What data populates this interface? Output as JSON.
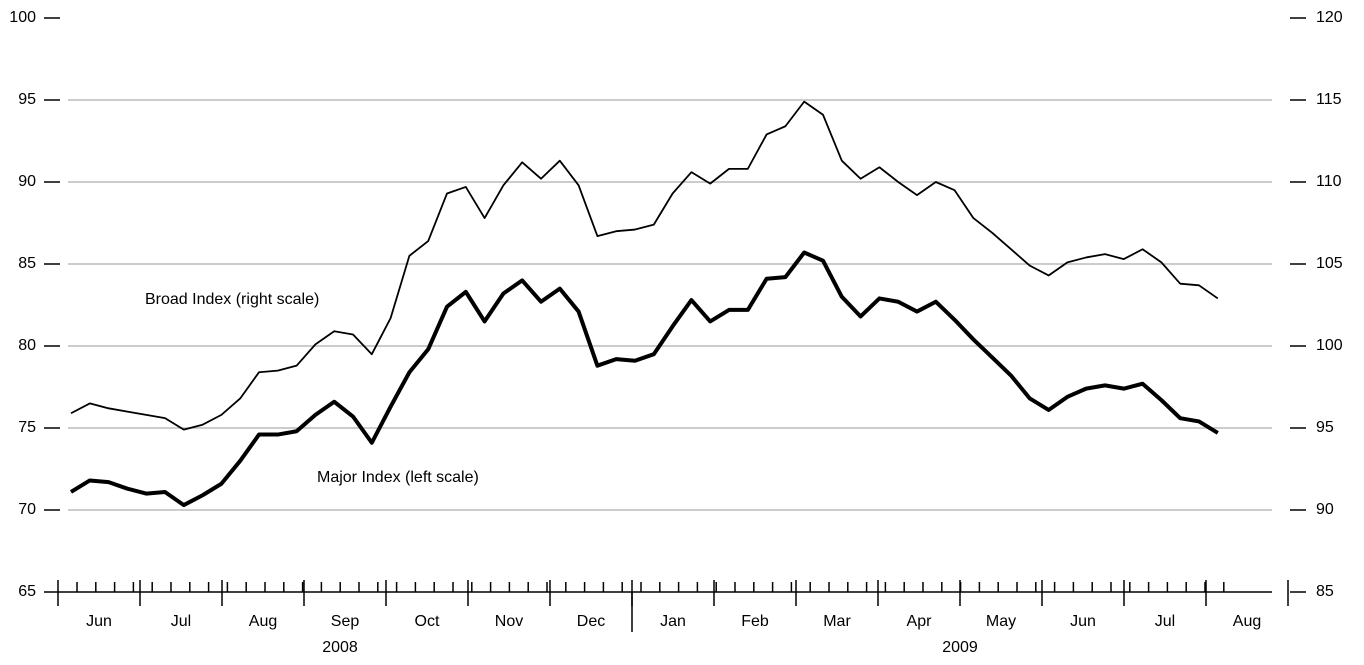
{
  "chart_data": {
    "type": "line",
    "ylim": [
      65,
      100
    ],
    "yticks": [
      65,
      70,
      75,
      80,
      85,
      90,
      95,
      100
    ],
    "y2lim": [
      85,
      120
    ],
    "y2ticks": [
      85,
      90,
      95,
      100,
      105,
      110,
      115,
      120
    ],
    "grid": true,
    "months": [
      "Jun",
      "Jul",
      "Aug",
      "Sep",
      "Oct",
      "Nov",
      "Dec",
      "Jan",
      "Feb",
      "Mar",
      "Apr",
      "May",
      "Jun",
      "Jul",
      "Aug"
    ],
    "years": [
      "2008",
      "2009"
    ],
    "series": [
      {
        "name": "Major Index (left scale)",
        "color": "#000000",
        "axis": "y",
        "values": [
          71.1,
          71.8,
          71.7,
          71.3,
          71.0,
          71.1,
          70.3,
          70.9,
          71.6,
          73.0,
          74.6,
          74.6,
          74.8,
          75.8,
          76.6,
          75.7,
          74.1,
          76.3,
          78.4,
          79.8,
          82.4,
          83.3,
          81.5,
          83.2,
          84.0,
          82.7,
          83.5,
          82.1,
          78.8,
          79.2,
          79.1,
          79.5,
          81.2,
          82.8,
          81.5,
          82.2,
          82.2,
          84.1,
          84.2,
          85.7,
          85.2,
          83.0,
          81.8,
          82.9,
          82.7,
          82.1,
          82.7,
          81.6,
          80.4,
          79.3,
          78.2,
          76.8,
          76.1,
          76.9,
          77.4,
          77.6,
          77.4,
          77.7,
          76.7,
          75.6,
          75.4,
          74.7
        ]
      },
      {
        "name": "Broad Index (right scale)",
        "color": "#000000",
        "axis": "y2",
        "values": [
          95.9,
          96.5,
          96.2,
          96.0,
          95.8,
          95.6,
          94.9,
          95.2,
          95.8,
          96.8,
          98.4,
          98.5,
          98.8,
          100.1,
          100.9,
          100.7,
          99.5,
          101.7,
          105.5,
          106.4,
          109.3,
          109.7,
          107.8,
          109.8,
          111.2,
          110.2,
          111.3,
          109.8,
          106.7,
          107.0,
          107.1,
          107.4,
          109.3,
          110.6,
          109.9,
          110.8,
          110.8,
          112.9,
          113.4,
          114.9,
          114.1,
          111.3,
          110.2,
          110.9,
          110.0,
          109.2,
          110.0,
          109.5,
          107.8,
          106.9,
          105.9,
          104.9,
          104.3,
          105.1,
          105.4,
          105.6,
          105.3,
          105.9,
          105.1,
          103.8,
          103.7,
          102.9
        ]
      }
    ]
  }
}
